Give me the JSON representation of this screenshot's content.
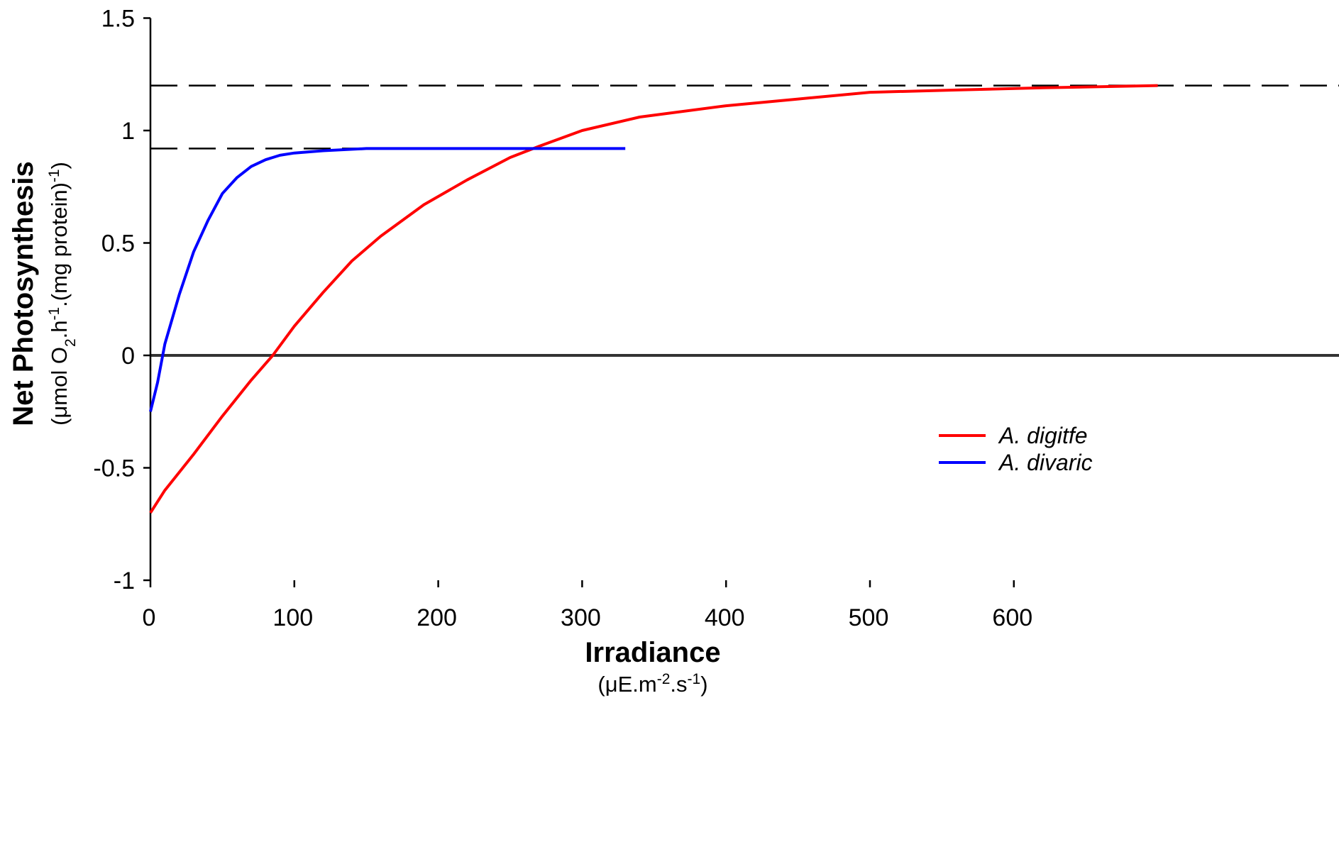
{
  "chart_data": {
    "type": "line",
    "xlabel": "Irradiance",
    "xunit_parts": [
      "(μE.m",
      "-2",
      ".s",
      "-1",
      ")"
    ],
    "ylabel": "Net Photosynthesis",
    "yunit_parts": [
      "(μmol O",
      "2",
      ".h",
      "-1",
      ".(mg protein)",
      "-1",
      ")"
    ],
    "xlim": [
      0,
      700
    ],
    "ylim": [
      -1,
      1.5
    ],
    "xticks": [
      0,
      100,
      200,
      300,
      400,
      500,
      600
    ],
    "xtick_labels": [
      "0",
      "100",
      "200",
      "300",
      "400",
      "500",
      "600"
    ],
    "yticks": [
      -1,
      -0.5,
      0,
      0.5,
      1,
      1.5
    ],
    "ytick_labels": [
      "-1",
      "-0.5",
      "0",
      "0.5",
      "1",
      "1.5"
    ],
    "reference_lines": [
      {
        "y": 0,
        "style": "solid",
        "color": "#333333"
      },
      {
        "y": 1.2,
        "style": "dashed",
        "color": "#000000"
      },
      {
        "y": 0.92,
        "style": "dashed",
        "color": "#000000",
        "x_end": 270
      }
    ],
    "legend_position": "right",
    "series": [
      {
        "name": "A. digitfe",
        "color": "#ff0000",
        "x": [
          0,
          10,
          30,
          50,
          70,
          85,
          100,
          120,
          140,
          160,
          190,
          220,
          250,
          270,
          300,
          340,
          400,
          450,
          500,
          560,
          620,
          700
        ],
        "y": [
          -0.7,
          -0.6,
          -0.44,
          -0.27,
          -0.11,
          0.0,
          0.13,
          0.28,
          0.42,
          0.53,
          0.67,
          0.78,
          0.88,
          0.93,
          1.0,
          1.06,
          1.11,
          1.14,
          1.17,
          1.18,
          1.19,
          1.2
        ]
      },
      {
        "name": "A. divaric",
        "color": "#0000ff",
        "x": [
          0,
          5,
          10,
          20,
          30,
          40,
          50,
          60,
          70,
          80,
          90,
          100,
          120,
          150,
          200,
          250,
          300,
          330
        ],
        "y": [
          -0.25,
          -0.12,
          0.05,
          0.27,
          0.46,
          0.6,
          0.72,
          0.79,
          0.84,
          0.87,
          0.89,
          0.9,
          0.91,
          0.92,
          0.92,
          0.92,
          0.92,
          0.92
        ]
      }
    ]
  }
}
